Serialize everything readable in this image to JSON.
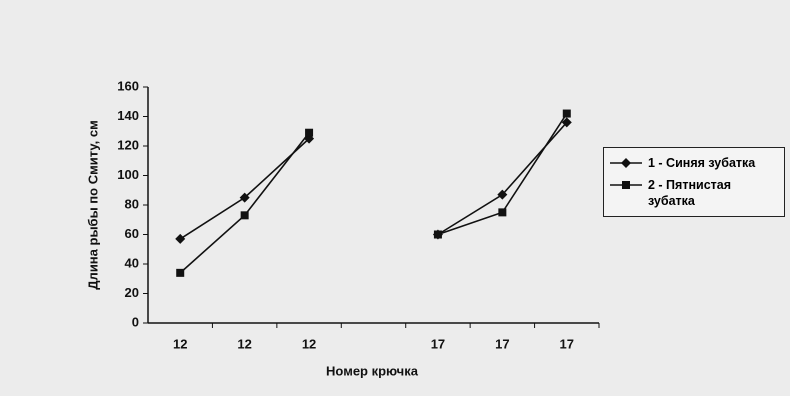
{
  "chart_data": {
    "type": "line",
    "x_label": "Номер крючка",
    "y_label": "Длина рыбы по Смиту, см",
    "categories": [
      "12",
      "12",
      "12",
      null,
      "17",
      "17",
      "17"
    ],
    "series": [
      {
        "name": "1 - Синяя зубатка",
        "color": "#111111",
        "marker": "diamond",
        "values": [
          57,
          85,
          125,
          null,
          60,
          87,
          136
        ]
      },
      {
        "name": "2 - Пятнистая зубатка",
        "color": "#111111",
        "marker": "square",
        "values": [
          34,
          73,
          129,
          null,
          60,
          75,
          142
        ]
      }
    ],
    "ylim": [
      0,
      160
    ],
    "yticks": [
      0,
      20,
      40,
      60,
      80,
      100,
      120,
      140,
      160
    ]
  }
}
